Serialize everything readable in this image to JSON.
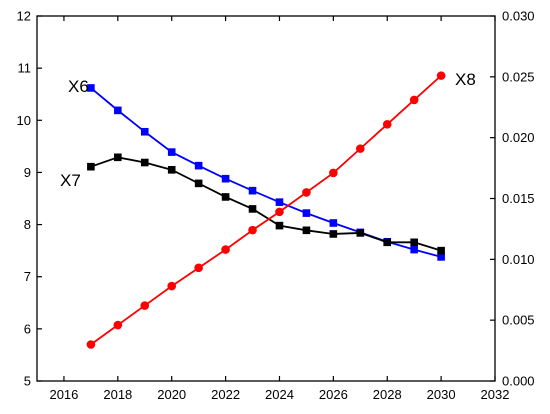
{
  "chart_data": {
    "type": "line",
    "title": "",
    "xlabel": "",
    "ylabel": "",
    "y2label": "",
    "xlim": [
      2015,
      2032
    ],
    "ylim": [
      5,
      12
    ],
    "y2lim": [
      0,
      0.03
    ],
    "x_ticks": [
      2016,
      2018,
      2020,
      2022,
      2024,
      2026,
      2028,
      2030,
      2032
    ],
    "y_ticks": [
      5,
      6,
      7,
      8,
      9,
      10,
      11,
      12
    ],
    "y2_ticks": [
      "0.000",
      "0.005",
      "0.010",
      "0.015",
      "0.020",
      "0.025",
      "0.030"
    ],
    "x": [
      2017,
      2018,
      2019,
      2020,
      2021,
      2022,
      2023,
      2024,
      2025,
      2026,
      2027,
      2028,
      2029,
      2030
    ],
    "grid": false,
    "legend": "none",
    "series": [
      {
        "name": "X6",
        "axis": "left",
        "color": "#0000ff",
        "marker": "square",
        "values": [
          10.62,
          10.19,
          9.78,
          9.39,
          9.13,
          8.88,
          8.65,
          8.43,
          8.22,
          8.03,
          7.85,
          7.67,
          7.52,
          7.38
        ]
      },
      {
        "name": "X7",
        "axis": "left",
        "color": "#000000",
        "marker": "square",
        "values": [
          9.11,
          9.29,
          9.19,
          9.05,
          8.79,
          8.53,
          8.3,
          7.98,
          7.89,
          7.82,
          7.84,
          7.66,
          7.66,
          7.5
        ]
      },
      {
        "name": "X8",
        "axis": "right",
        "color": "#ff0000",
        "marker": "circle",
        "values": [
          0.003,
          0.0046,
          0.0062,
          0.0078,
          0.0093,
          0.0108,
          0.0124,
          0.0139,
          0.0155,
          0.0171,
          0.0191,
          0.0211,
          0.0231,
          0.0251
        ]
      }
    ]
  }
}
